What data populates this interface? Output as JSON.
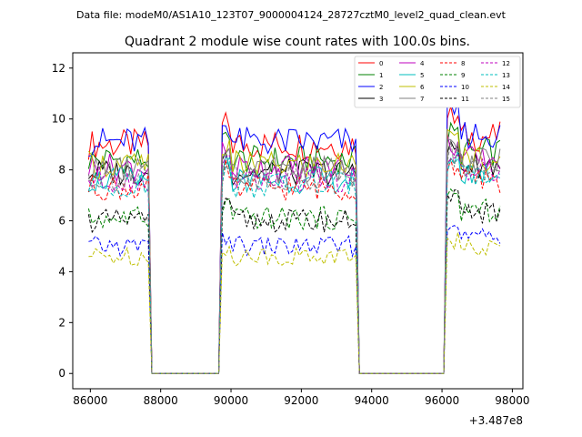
{
  "chart_data": {
    "type": "line",
    "suptitle": "Data file: modeM0/AS1A10_123T07_9000004124_28727cztM0_level2_quad_clean.evt",
    "title": "Quadrant 2 module wise count rates with 100.0s bins.",
    "xlabel": "",
    "ylabel": "",
    "x_offset_label": "+3.487e8",
    "xlim": [
      85500,
      98300
    ],
    "ylim": [
      -0.6,
      12.6
    ],
    "x_ticks": [
      86000,
      88000,
      90000,
      92000,
      94000,
      96000,
      98000
    ],
    "x_tick_labels": [
      "86000",
      "88000",
      "90000",
      "92000",
      "94000",
      "96000",
      "98000"
    ],
    "y_ticks": [
      0,
      2,
      4,
      6,
      8,
      10,
      12
    ],
    "y_tick_labels": [
      "0",
      "2",
      "4",
      "6",
      "8",
      "10",
      "12"
    ],
    "legend_location": "top-right",
    "bin_width_s": 100,
    "segments": [
      {
        "start": 85950,
        "bins": 20
      },
      {
        "start": 87750,
        "bins": 20
      },
      {
        "start": 89750,
        "bins": 39
      },
      {
        "start": 93650,
        "bins": 25
      },
      {
        "start": 96150,
        "bins": 16
      }
    ],
    "series": [
      {
        "name": "0",
        "color": "#ff0000",
        "dash": "solid",
        "level": 9.0
      },
      {
        "name": "1",
        "color": "#008000",
        "dash": "solid",
        "level": 8.4
      },
      {
        "name": "2",
        "color": "#0000ff",
        "dash": "solid",
        "level": 9.1
      },
      {
        "name": "3",
        "color": "#000000",
        "dash": "solid",
        "level": 7.9
      },
      {
        "name": "4",
        "color": "#bf00bf",
        "dash": "solid",
        "level": 8.1
      },
      {
        "name": "5",
        "color": "#00bfbf",
        "dash": "solid",
        "level": 7.6
      },
      {
        "name": "6",
        "color": "#bfbf00",
        "dash": "solid",
        "level": 8.2
      },
      {
        "name": "7",
        "color": "#808080",
        "dash": "solid",
        "level": 8.0
      },
      {
        "name": "8",
        "color": "#ff0000",
        "dash": "dashed",
        "level": 7.3
      },
      {
        "name": "9",
        "color": "#008000",
        "dash": "dashed",
        "level": 6.1
      },
      {
        "name": "10",
        "color": "#0000ff",
        "dash": "dashed",
        "level": 5.0
      },
      {
        "name": "11",
        "color": "#000000",
        "dash": "dashed",
        "level": 6.0
      },
      {
        "name": "12",
        "color": "#bf00bf",
        "dash": "dashed",
        "level": 7.6
      },
      {
        "name": "13",
        "color": "#00bfbf",
        "dash": "dashed",
        "level": 7.4
      },
      {
        "name": "14",
        "color": "#bfbf00",
        "dash": "dashed",
        "level": 4.6
      },
      {
        "name": "15",
        "color": "#808080",
        "dash": "dashed",
        "level": 7.7
      }
    ]
  }
}
